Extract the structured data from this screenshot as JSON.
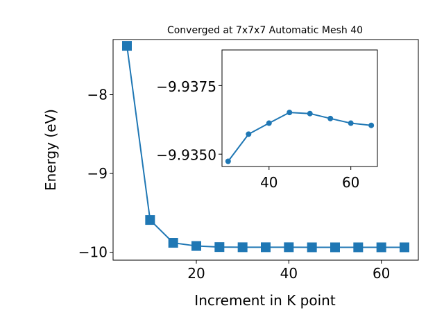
{
  "chart_data": [
    {
      "type": "line",
      "title": "Converged at 7x7x7 Automatic Mesh 40",
      "xlabel": "Increment in K point",
      "ylabel": "Energy (eV)",
      "xlim": [
        2,
        68
      ],
      "ylim": [
        -10.1,
        -7.3
      ],
      "xticks": [
        20,
        40,
        60
      ],
      "xtick_labels": [
        "20",
        "40",
        "60"
      ],
      "yticks": [
        -10,
        -9,
        -8
      ],
      "ytick_labels": [
        "−10",
        "−9",
        "−8"
      ],
      "marker": "square",
      "color": "#1f77b4",
      "series": [
        {
          "x": [
            5,
            10,
            15,
            20,
            25,
            30,
            35,
            40,
            45,
            50,
            55,
            60,
            65
          ],
          "y": [
            -7.38,
            -9.59,
            -9.88,
            -9.92,
            -9.934,
            -9.936,
            -9.936,
            -9.936,
            -9.937,
            -9.937,
            -9.937,
            -9.937,
            -9.937
          ]
        }
      ]
    },
    {
      "type": "line",
      "title": "",
      "xlim": [
        28.5,
        66.5
      ],
      "ylim": [
        -9.93455,
        -9.9388
      ],
      "xticks": [
        40,
        60
      ],
      "xtick_labels": [
        "40",
        "60"
      ],
      "yticks": [
        -9.9375,
        -9.935
      ],
      "ytick_labels": [
        "−9.9375",
        "−9.9350"
      ],
      "marker": "circle",
      "color": "#1f77b4",
      "series": [
        {
          "x": [
            30,
            35,
            40,
            45,
            50,
            55,
            60,
            65
          ],
          "y": [
            -9.93474,
            -9.93573,
            -9.93613,
            -9.93652,
            -9.93648,
            -9.9363,
            -9.93613,
            -9.93605
          ]
        }
      ]
    }
  ]
}
